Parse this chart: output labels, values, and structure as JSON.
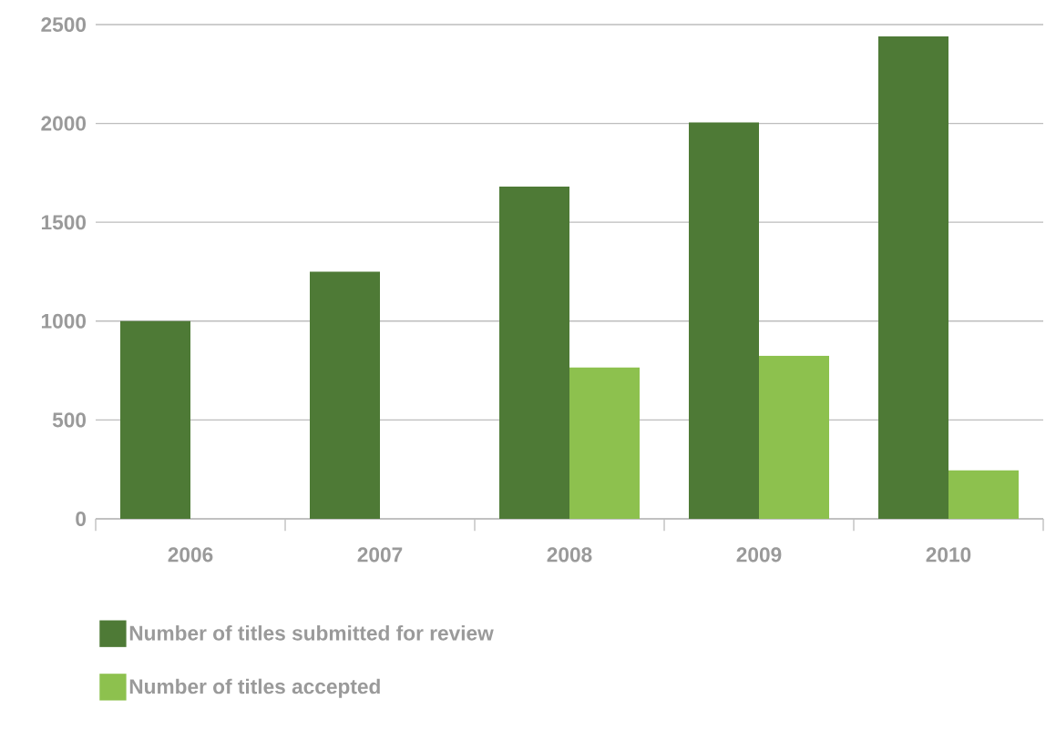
{
  "chart_data": {
    "type": "bar",
    "categories": [
      "2006",
      "2007",
      "2008",
      "2009",
      "2010"
    ],
    "series": [
      {
        "name": "Number of titles submitted for review",
        "color": "#4e7a36",
        "values": [
          1000,
          1250,
          1680,
          2005,
          2440
        ]
      },
      {
        "name": "Number of titles accepted",
        "color": "#8dc14e",
        "values": [
          null,
          null,
          765,
          825,
          245
        ]
      }
    ],
    "ylim": [
      0,
      2500
    ],
    "yticks": [
      0,
      500,
      1000,
      1500,
      2000,
      2500
    ],
    "grid": "y",
    "legend": "bottom"
  }
}
